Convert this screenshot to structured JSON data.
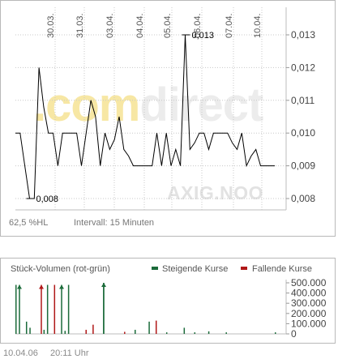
{
  "logo": {
    "part1": ".com",
    "part2": "direct"
  },
  "watermark": "AXIG.NOO",
  "price_footer": {
    "range": "62,5 %HL",
    "interval": "Intervall: 15 Minuten"
  },
  "volume_header": {
    "title": "Stück-Volumen (rot-grün)",
    "legend_up": "Steigende Kurse",
    "legend_down": "Fallende Kurse"
  },
  "timestamp": {
    "date": "10.04.06",
    "time": "20:11 Uhr"
  },
  "colors": {
    "up": "#1b6b3a",
    "down": "#b01818",
    "line": "#000000",
    "grid": "#c8c8c8"
  },
  "chart_data": [
    {
      "type": "line",
      "x_tick_labels": [
        "30.03.",
        "31.03.",
        "03.04.",
        "04.04.",
        "05.04.",
        "06.04.",
        "07.04.",
        "10.04."
      ],
      "y_tick_labels": [
        "0,013",
        "0,012",
        "0,011",
        "0,010",
        "0,009",
        "0,008"
      ],
      "ylim": [
        0.008,
        0.013
      ],
      "grid": true,
      "annotations": [
        {
          "label": "0,013",
          "value": 0.013
        },
        {
          "label": "0,008",
          "value": 0.008
        }
      ],
      "series": [
        {
          "values": [
            0.01,
            0.01,
            0.009,
            0.008,
            0.008,
            0.012,
            0.0108,
            0.01,
            0.01,
            0.009,
            0.01,
            0.01,
            0.01,
            0.01,
            0.009,
            0.01,
            0.011,
            0.0105,
            0.009,
            0.01,
            0.0095,
            0.0098,
            0.0105,
            0.0095,
            0.0093,
            0.009,
            0.009,
            0.009,
            0.009,
            0.009,
            0.01,
            0.009,
            0.01,
            0.009,
            0.0095,
            0.009,
            0.013,
            0.0095,
            0.0097,
            0.01,
            0.01,
            0.0095,
            0.01,
            0.01,
            0.01,
            0.01,
            0.0097,
            0.0095,
            0.01,
            0.009,
            0.0093,
            0.0095,
            0.009,
            0.009,
            0.009,
            0.009
          ]
        }
      ]
    },
    {
      "type": "bar",
      "y_tick_labels": [
        "500.000",
        "400.000",
        "300.000",
        "200.000",
        "100.000",
        "0"
      ],
      "ylim": [
        0,
        500000
      ],
      "up_volumes": [
        480000,
        0,
        0,
        120000,
        60000,
        0,
        0,
        0,
        40000,
        480000,
        0,
        0,
        0,
        0,
        30000,
        480000,
        0,
        0,
        0,
        0,
        0,
        0,
        0,
        0,
        0,
        500000,
        0,
        0,
        0,
        0,
        0,
        0,
        0,
        0,
        40000,
        0,
        0,
        0,
        120000,
        0,
        0,
        0,
        0,
        15000,
        0,
        0,
        0,
        0,
        60000,
        0,
        0,
        15000,
        0,
        0,
        0,
        25000,
        0,
        0,
        0,
        0,
        15000,
        0,
        0,
        0,
        0,
        0,
        0,
        0,
        0,
        0,
        0,
        0,
        0,
        0,
        15000
      ],
      "down_volumes": [
        0,
        0,
        0,
        0,
        0,
        0,
        0,
        0,
        0,
        0,
        0,
        480000,
        0,
        0,
        0,
        0,
        0,
        0,
        0,
        0,
        40000,
        0,
        90000,
        0,
        0,
        0,
        0,
        0,
        0,
        0,
        0,
        20000,
        0,
        0,
        0,
        0,
        0,
        0,
        0,
        0,
        130000,
        0,
        0,
        0,
        0,
        0,
        0,
        0,
        0,
        0,
        0,
        0,
        0,
        0,
        0,
        0,
        0,
        0,
        0,
        0,
        0,
        0,
        0,
        0,
        0,
        0,
        0,
        0,
        0,
        0,
        0,
        0,
        0,
        0,
        0
      ],
      "trade_markers": [
        480000,
        480000,
        480000,
        500000
      ]
    }
  ]
}
